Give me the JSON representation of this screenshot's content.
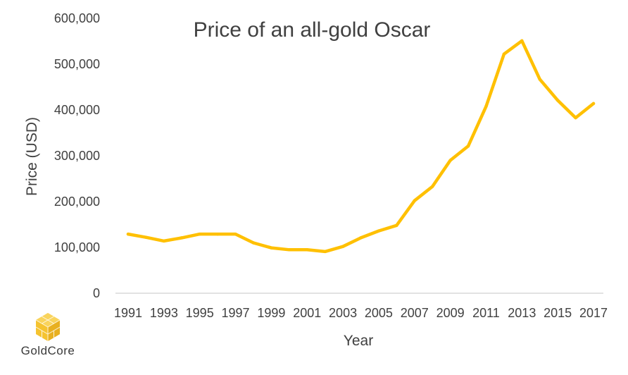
{
  "chart_data": {
    "type": "line",
    "title": "Price of an all-gold Oscar",
    "xlabel": "Year",
    "ylabel": "Price (USD)",
    "ylim": [
      0,
      600000
    ],
    "y_ticks": [
      "0",
      "100,000",
      "200,000",
      "300,000",
      "400,000",
      "500,000",
      "600,000"
    ],
    "x_tick_labels": [
      "1991",
      "1993",
      "1995",
      "1997",
      "1999",
      "2001",
      "2003",
      "2005",
      "2007",
      "2009",
      "2011",
      "2013",
      "2015",
      "2017"
    ],
    "x": [
      1991,
      1992,
      1993,
      1994,
      1995,
      1996,
      1997,
      1998,
      1999,
      2000,
      2001,
      2002,
      2003,
      2004,
      2005,
      2006,
      2007,
      2008,
      2009,
      2010,
      2011,
      2012,
      2013,
      2014,
      2015,
      2016,
      2017
    ],
    "series": [
      {
        "values": [
          129000,
          122000,
          114000,
          121000,
          129000,
          129000,
          129000,
          110000,
          99000,
          95000,
          95000,
          91000,
          102000,
          121000,
          136000,
          148000,
          202000,
          233000,
          290000,
          321000,
          408000,
          522000,
          551000,
          467000,
          421000,
          383000,
          414000
        ],
        "color": "#FFC000"
      }
    ],
    "grid": false,
    "legend": "none"
  },
  "brand": {
    "name": "GoldCore",
    "logo_icon": "gold-cube-logo",
    "color": "#F5C330"
  }
}
